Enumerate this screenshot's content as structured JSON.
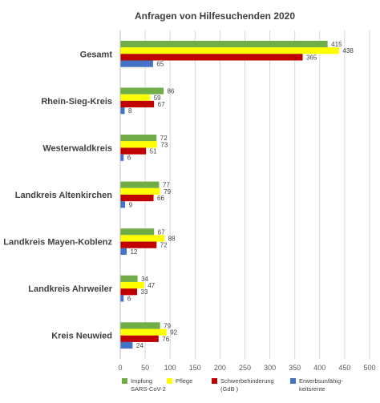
{
  "chart_data": {
    "type": "bar",
    "orientation": "horizontal",
    "title": "Anfragen von Hilfesuchenden 2020",
    "categories": [
      "Gesamt",
      "Rhein-Sieg-Kreis",
      "Westerwaldkreis",
      "Landkreis Altenkirchen",
      "Landkreis Mayen-Koblenz",
      "Landkreis Ahrweiler",
      "Kreis Neuwied"
    ],
    "series": [
      {
        "name": "Impfung SARS-CoV-2",
        "name_lines": [
          "Impfung",
          "SARS-CoV-2"
        ],
        "color": "#70ad47",
        "values": [
          415,
          86,
          72,
          77,
          67,
          34,
          79
        ]
      },
      {
        "name": "Pflege",
        "name_lines": [
          "Pflege"
        ],
        "color": "#ffff00",
        "values": [
          438,
          59,
          73,
          79,
          88,
          47,
          92
        ]
      },
      {
        "name": "Schwerbehinderung (GdB )",
        "name_lines": [
          "Schwerbehinderung",
          "(GdB )"
        ],
        "color": "#c00000",
        "values": [
          365,
          67,
          51,
          66,
          72,
          33,
          76
        ]
      },
      {
        "name": "Erwerbsunfähigkeitsrente",
        "name_lines": [
          "Erwerbsunfähig-",
          "keitsrente"
        ],
        "color": "#4472c4",
        "values": [
          65,
          8,
          6,
          9,
          12,
          6,
          24
        ]
      }
    ],
    "xlim": [
      0,
      500
    ],
    "xticks": [
      0,
      50,
      100,
      150,
      200,
      250,
      300,
      350,
      400,
      450,
      500
    ],
    "grid": true,
    "legend": "bottom"
  }
}
